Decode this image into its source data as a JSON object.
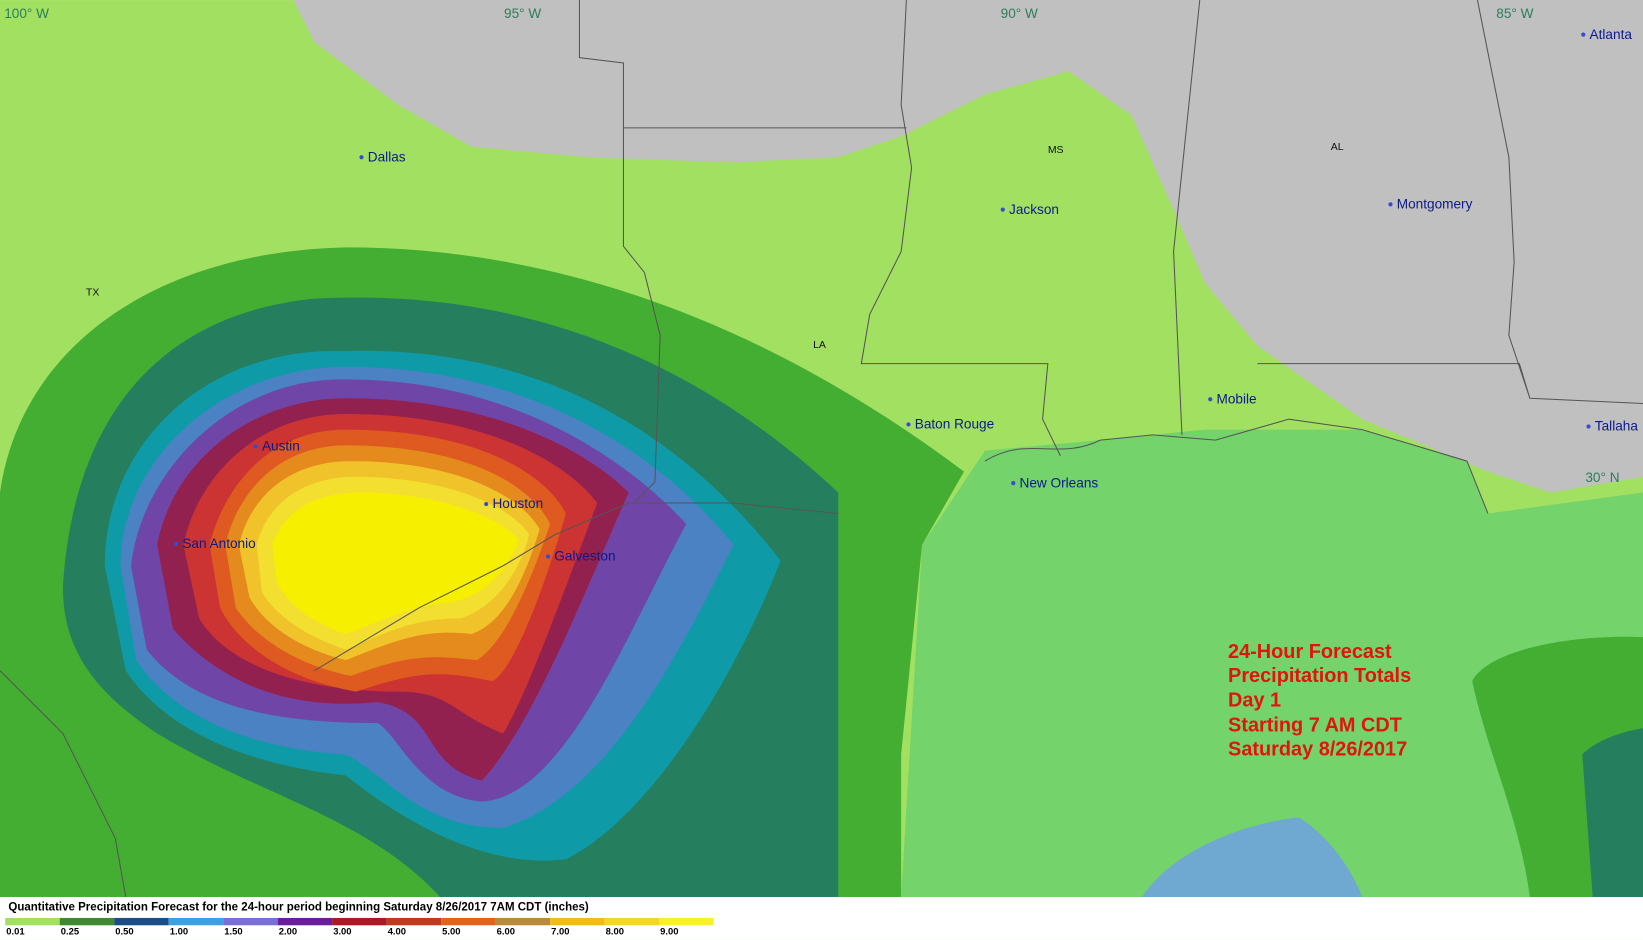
{
  "grid_labels": [
    "100° W",
    "95° W",
    "90° W",
    "85° W",
    "30° N"
  ],
  "states": [
    "TX",
    "LA",
    "MS",
    "AL"
  ],
  "cities": [
    "Dallas",
    "Jackson",
    "Montgomery",
    "Atlanta",
    "Mobile",
    "Baton Rouge",
    "Tallaha",
    "New Orleans",
    "Austin",
    "Houston",
    "San Antonio",
    "Galveston"
  ],
  "forecast_lines": [
    "24-Hour Forecast",
    "Precipitation Totals",
    "Day 1",
    "Starting 7 AM CDT",
    "Saturday 8/26/2017"
  ],
  "legend": {
    "title": "Quantitative Precipitation Forecast for the 24-hour period beginning Saturday 8/26/2017 7AM CDT (inches)",
    "items": [
      {
        "label": "0.01",
        "color": "#a2e062"
      },
      {
        "label": "0.25",
        "color": "#3f8a2e"
      },
      {
        "label": "0.50",
        "color": "#1c4e86"
      },
      {
        "label": "1.00",
        "color": "#3fa0e0"
      },
      {
        "label": "1.50",
        "color": "#7a6fd6"
      },
      {
        "label": "2.00",
        "color": "#6a1e9c"
      },
      {
        "label": "3.00",
        "color": "#a51c24"
      },
      {
        "label": "4.00",
        "color": "#c23a1e"
      },
      {
        "label": "5.00",
        "color": "#e3631c"
      },
      {
        "label": "6.00",
        "color": "#b88a3c"
      },
      {
        "label": "7.00",
        "color": "#f1bb1a"
      },
      {
        "label": "8.00",
        "color": "#f4d62a"
      },
      {
        "label": "9.00",
        "color": "#f7f02a"
      }
    ]
  }
}
